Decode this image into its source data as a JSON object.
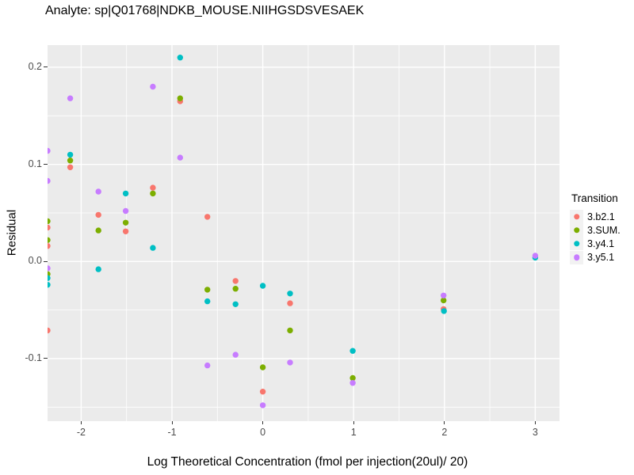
{
  "title": "Analyte: sp|Q01768|NDKB_MOUSE.NIIHGSDSVESAEK",
  "colors": {
    "panel_bg": "#EBEBEB",
    "grid": "#FFFFFF",
    "tick_label": "#4D4D4D",
    "tick_mark": "#333333",
    "text": "#000000",
    "legend_key_bg": "#F2F2F2"
  },
  "chart_data": {
    "type": "scatter",
    "title": "Analyte: sp|Q01768|NDKB_MOUSE.NIIHGSDSVESAEK",
    "xlabel": "Log Theoretical Concentration (fmol per injection(20ul)/ 20)",
    "ylabel": "Residual",
    "legend_title": "Transition",
    "legend_position": "right",
    "grid": true,
    "xlim": [
      -2.37,
      3.267
    ],
    "ylim": [
      -0.1644,
      0.2228
    ],
    "x_ticks": [
      {
        "v": -2,
        "label": "-2"
      },
      {
        "v": -1,
        "label": "-1"
      },
      {
        "v": 0,
        "label": "0"
      },
      {
        "v": 1,
        "label": "1"
      },
      {
        "v": 2,
        "label": "2"
      },
      {
        "v": 3,
        "label": "3"
      }
    ],
    "y_ticks": [
      {
        "v": 0.2,
        "label": "0.2"
      },
      {
        "v": 0.1,
        "label": "0.1"
      },
      {
        "v": 0.0,
        "label": "0.0"
      },
      {
        "v": -0.1,
        "label": "-0.1"
      }
    ],
    "x_minor": [
      -1.5,
      -0.5,
      0.5,
      1.5,
      2.5
    ],
    "y_minor": [
      0.15,
      0.05,
      -0.05,
      -0.15
    ],
    "series": [
      {
        "name": "3.b2.1",
        "color": "#F8766D",
        "points": [
          [
            -2.37,
            0.035
          ],
          [
            -2.37,
            0.016
          ],
          [
            -2.37,
            -0.071
          ],
          [
            -2.12,
            0.097
          ],
          [
            -1.81,
            0.048
          ],
          [
            -1.51,
            0.031
          ],
          [
            -1.21,
            0.076
          ],
          [
            -0.91,
            0.165
          ],
          [
            -0.61,
            0.046
          ],
          [
            -0.3,
            -0.02
          ],
          [
            0.0,
            -0.134
          ],
          [
            0.3,
            -0.043
          ],
          [
            1.99,
            -0.049
          ]
        ]
      },
      {
        "name": "3.SUM.",
        "color": "#7CAE00",
        "points": [
          [
            -2.37,
            0.0415
          ],
          [
            -2.37,
            0.022
          ],
          [
            -2.37,
            -0.013
          ],
          [
            -2.12,
            0.104
          ],
          [
            -1.81,
            0.032
          ],
          [
            -1.51,
            0.04
          ],
          [
            -1.21,
            0.07
          ],
          [
            -0.91,
            0.168
          ],
          [
            -0.61,
            -0.029
          ],
          [
            -0.3,
            -0.028
          ],
          [
            0.0,
            -0.109
          ],
          [
            0.3,
            -0.071
          ],
          [
            0.99,
            -0.12
          ],
          [
            1.99,
            -0.04
          ]
        ]
      },
      {
        "name": "3.y4.1",
        "color": "#00BFC4",
        "points": [
          [
            -2.37,
            -0.017
          ],
          [
            -2.37,
            -0.024
          ],
          [
            -2.12,
            0.11
          ],
          [
            -1.81,
            -0.008
          ],
          [
            -1.51,
            0.07
          ],
          [
            -1.21,
            0.014
          ],
          [
            -0.91,
            0.21
          ],
          [
            -0.61,
            -0.041
          ],
          [
            -0.3,
            -0.044
          ],
          [
            0.0,
            -0.025
          ],
          [
            0.3,
            -0.033
          ],
          [
            0.99,
            -0.092
          ],
          [
            1.995,
            -0.051
          ],
          [
            3.0,
            0.004
          ]
        ]
      },
      {
        "name": "3.y5.1",
        "color": "#C77CFF",
        "points": [
          [
            -2.37,
            0.114
          ],
          [
            -2.37,
            0.083
          ],
          [
            -2.37,
            -0.007
          ],
          [
            -2.12,
            0.168
          ],
          [
            -1.81,
            0.072
          ],
          [
            -1.51,
            0.052
          ],
          [
            -1.21,
            0.18
          ],
          [
            -0.91,
            0.107
          ],
          [
            -0.61,
            -0.107
          ],
          [
            -0.3,
            -0.096
          ],
          [
            0.0,
            -0.148
          ],
          [
            0.3,
            -0.104
          ],
          [
            0.99,
            -0.125
          ],
          [
            1.99,
            -0.035
          ],
          [
            3.0,
            0.006
          ]
        ]
      }
    ]
  }
}
